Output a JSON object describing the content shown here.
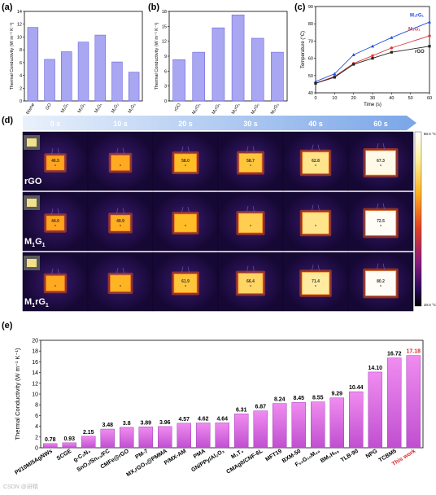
{
  "panels": {
    "a_label": "(a)",
    "b_label": "(b)",
    "c_label": "(c)",
    "d_label": "(d)",
    "e_label": "(e)"
  },
  "colors": {
    "bar": "#a9a6f2",
    "bar_stroke": "#6b66d8",
    "line_m1rg1": "#1f4fe0",
    "line_m1g1": "#d83a3a",
    "line_rgo": "#222222",
    "bar_e_top": "#f08cf0",
    "bar_e_bottom": "#c04fd0",
    "this_work": "#e0242a",
    "arrow": "#7aa6e8"
  },
  "chart_data": [
    {
      "id": "a",
      "type": "bar",
      "ylabel": "Thermal Conductivity (W m⁻¹ K⁻¹)",
      "ylim": [
        0,
        14
      ],
      "yticks": [
        0,
        2,
        4,
        6,
        8,
        10,
        12,
        14
      ],
      "categories": [
        "MXene",
        "GO",
        "M₁G₁",
        "M₁G₁",
        "M₁G₁",
        "M₁G₂",
        "M₁G₃"
      ],
      "values": [
        11.5,
        6.5,
        7.7,
        9.2,
        10.3,
        6.1,
        4.5
      ]
    },
    {
      "id": "b",
      "type": "bar",
      "ylabel": "Thermal Conductivity (W m⁻¹ K⁻¹)",
      "ylim": [
        0,
        18
      ],
      "yticks": [
        0,
        3,
        6,
        9,
        12,
        15,
        18
      ],
      "categories": [
        "rGO",
        "M₃rG₁",
        "M₁rG₁",
        "M₁rG₁",
        "M₁rG₂",
        "M₁rG₃"
      ],
      "values": [
        8.3,
        9.8,
        14.7,
        17.3,
        12.6,
        9.8
      ]
    },
    {
      "id": "c",
      "type": "line",
      "xlabel": "Time (s)",
      "ylabel": "Temperature (°C)",
      "xlim": [
        0,
        60
      ],
      "ylim": [
        40,
        90
      ],
      "xticks": [
        0,
        10,
        20,
        30,
        40,
        50,
        60
      ],
      "yticks": [
        40,
        50,
        60,
        70,
        80,
        90
      ],
      "x": [
        0,
        10,
        20,
        30,
        40,
        60
      ],
      "series": [
        {
          "name": "M₁rG₁",
          "values": [
            46.5,
            51,
            62,
            67,
            72,
            81
          ]
        },
        {
          "name": "M₁G₁",
          "values": [
            45.5,
            49.5,
            57,
            61.5,
            66,
            73
          ]
        },
        {
          "name": "rGO",
          "values": [
            45.5,
            49,
            56.5,
            60,
            63.5,
            67
          ]
        }
      ]
    },
    {
      "id": "e",
      "type": "bar",
      "ylabel": "Thermal Conductivity (W m⁻¹ K⁻¹)",
      "ylim": [
        0,
        20
      ],
      "yticks": [
        0,
        2,
        4,
        6,
        8,
        10,
        12,
        14,
        16,
        18,
        20
      ],
      "categories": [
        "PI/10M/5AgNWs",
        "SCGE",
        "g-C₃N₄",
        "SnO₂/Sn₀₃/FC",
        "CMFe@rGO",
        "PM-7",
        "MX,rGO₃@PMMA",
        "P/MX-AM",
        "PMA",
        "GN/PPy/Al₂O₃",
        "M₁T₄",
        "CMAg0/CNF-6L",
        "MFT19",
        "BXM-50",
        "F₅₀G₁₀M₄₀",
        "BM₂H₉₈",
        "TLB-90",
        "NPG",
        "TCBM5",
        "This work"
      ],
      "values": [
        0.78,
        0.93,
        2.15,
        3.48,
        3.8,
        3.89,
        3.96,
        4.57,
        4.62,
        4.64,
        6.31,
        6.87,
        8.24,
        8.45,
        8.55,
        9.29,
        10.44,
        14.1,
        16.72,
        17.18
      ],
      "value_labels": [
        "0.78",
        "0.93",
        "2.15",
        "3.48",
        "3.8",
        "3.89",
        "3.96",
        "4.57",
        "4.62",
        "4.64",
        "6.31",
        "6.87",
        "8.24",
        "8.45",
        "8.55",
        "9.29",
        "10.44",
        "14.10",
        "16.72",
        "17.18"
      ]
    }
  ],
  "thermal": {
    "times": [
      "0 s",
      "10 s",
      "20 s",
      "30 s",
      "40 s",
      "60 s"
    ],
    "rows": [
      {
        "label": "rGO",
        "sub": "",
        "readouts": [
          "46.5",
          "",
          "58.0",
          "58.7",
          "62.8",
          "67.3"
        ],
        "heat": [
          0.25,
          0.3,
          0.5,
          0.55,
          0.75,
          0.95
        ]
      },
      {
        "label": "M",
        "sub": "1",
        "label2": "G",
        "sub2": "1",
        "readouts": [
          "44.0",
          "49.9",
          "",
          "",
          "",
          "72.5"
        ],
        "heat": [
          0.25,
          0.35,
          0.5,
          0.6,
          0.75,
          0.98
        ]
      },
      {
        "label": "M",
        "sub": "1",
        "label2": "rG",
        "sub2": "1",
        "readouts": [
          "",
          "",
          "61.9",
          "66.4",
          "71.4",
          "80.2"
        ],
        "heat": [
          0.3,
          0.4,
          0.55,
          0.65,
          0.8,
          0.98
        ]
      }
    ],
    "scale_max": "80.0 °C",
    "scale_min": "20.0 °C"
  },
  "watermark": "CSDN @研精"
}
